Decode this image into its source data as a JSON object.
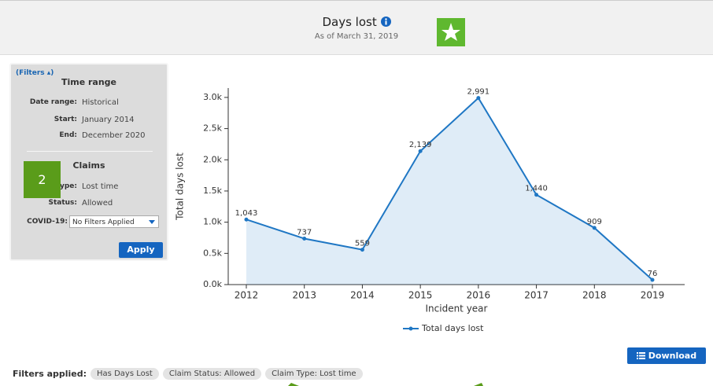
{
  "header": {
    "title": "Days lost",
    "subtitle": "As of March 31, 2019"
  },
  "annotation_badge": "2",
  "filters": {
    "toggle": "(Filters ▴)",
    "time_range": {
      "heading": "Time range",
      "rows": [
        [
          "Date range:",
          "Historical"
        ],
        [
          "Start:",
          "January 2014"
        ],
        [
          "End:",
          "December 2020"
        ]
      ]
    },
    "claims": {
      "heading": "Claims",
      "rows": [
        [
          "Type:",
          "Lost time"
        ],
        [
          "Status:",
          "Allowed"
        ]
      ],
      "covid_label": "COVID-19:",
      "covid_value": "No Filters Applied"
    },
    "apply": "Apply"
  },
  "chart_data": {
    "type": "line",
    "xlabel": "Incident year",
    "ylabel": "Total days lost",
    "categories": [
      "2012",
      "2013",
      "2014",
      "2015",
      "2016",
      "2017",
      "2018",
      "2019"
    ],
    "series": [
      {
        "name": "Total days lost",
        "color": "#1f77c4",
        "values": [
          1043,
          737,
          559,
          2139,
          2991,
          1440,
          909,
          76
        ],
        "value_labels": [
          "1,043",
          "737",
          "559",
          "2,139",
          "2,991",
          "1,440",
          "909",
          "76"
        ]
      }
    ],
    "area": true,
    "ylim": [
      0,
      3150
    ],
    "yticks": [
      {
        "value": 0,
        "label": "0.0k"
      },
      {
        "value": 500,
        "label": "0.5k"
      },
      {
        "value": 1000,
        "label": "1.0k"
      },
      {
        "value": 1500,
        "label": "1.5k"
      },
      {
        "value": 2000,
        "label": "2.0k"
      },
      {
        "value": 2500,
        "label": "2.5k"
      },
      {
        "value": 3000,
        "label": "3.0k"
      }
    ],
    "legend": "bottom"
  },
  "download": "Download",
  "filters_applied": {
    "label": "Filters applied:",
    "chips": [
      "Has Days Lost",
      "Claim Status: Allowed",
      "Claim Type: Lost time"
    ]
  }
}
